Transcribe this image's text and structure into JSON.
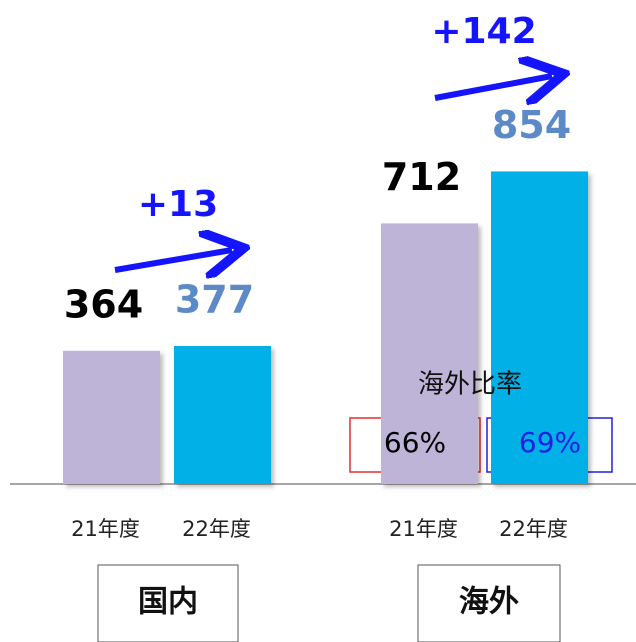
{
  "chart_data": {
    "type": "bar",
    "categories": [
      "国内",
      "海外"
    ],
    "series": [
      {
        "name": "21年度",
        "color": "#bdb4d8",
        "label_color": "#000000",
        "values": [
          364,
          712
        ]
      },
      {
        "name": "22年度",
        "color": "#00b0e6",
        "label_color": "#5b8ac6",
        "values": [
          377,
          854
        ]
      }
    ],
    "annotations": [
      "+13",
      "+142"
    ],
    "ratio": {
      "title": "海外比率",
      "values": [
        66,
        69
      ],
      "value_labels": [
        "66%",
        "69%"
      ]
    }
  }
}
